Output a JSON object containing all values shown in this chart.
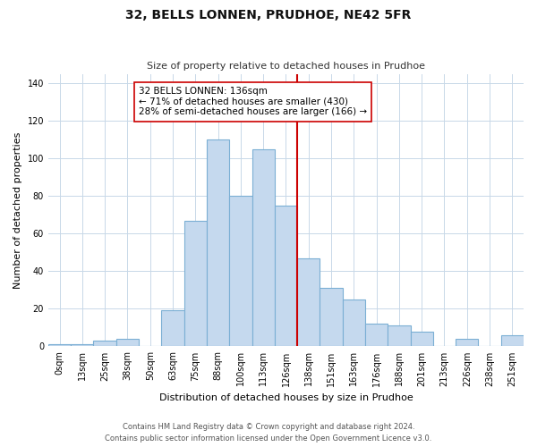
{
  "title": "32, BELLS LONNEN, PRUDHOE, NE42 5FR",
  "subtitle": "Size of property relative to detached houses in Prudhoe",
  "xlabel": "Distribution of detached houses by size in Prudhoe",
  "ylabel": "Number of detached properties",
  "bar_labels": [
    "0sqm",
    "13sqm",
    "25sqm",
    "38sqm",
    "50sqm",
    "63sqm",
    "75sqm",
    "88sqm",
    "100sqm",
    "113sqm",
    "126sqm",
    "138sqm",
    "151sqm",
    "163sqm",
    "176sqm",
    "188sqm",
    "201sqm",
    "213sqm",
    "226sqm",
    "238sqm",
    "251sqm"
  ],
  "bar_values": [
    1,
    1,
    3,
    4,
    0,
    19,
    67,
    110,
    80,
    105,
    75,
    47,
    31,
    25,
    12,
    11,
    8,
    0,
    4,
    0,
    6
  ],
  "bar_color": "#c5d9ee",
  "bar_edge_color": "#7bafd4",
  "vline_color": "#cc0000",
  "annotation_title": "32 BELLS LONNEN: 136sqm",
  "annotation_line1": "← 71% of detached houses are smaller (430)",
  "annotation_line2": "28% of semi-detached houses are larger (166) →",
  "ylim": [
    0,
    145
  ],
  "yticks": [
    0,
    20,
    40,
    60,
    80,
    100,
    120,
    140
  ],
  "footer1": "Contains HM Land Registry data © Crown copyright and database right 2024.",
  "footer2": "Contains public sector information licensed under the Open Government Licence v3.0.",
  "background_color": "#ffffff",
  "grid_color": "#c8d8e8",
  "title_fontsize": 10,
  "subtitle_fontsize": 8,
  "axis_label_fontsize": 8,
  "tick_fontsize": 7,
  "footer_fontsize": 6
}
